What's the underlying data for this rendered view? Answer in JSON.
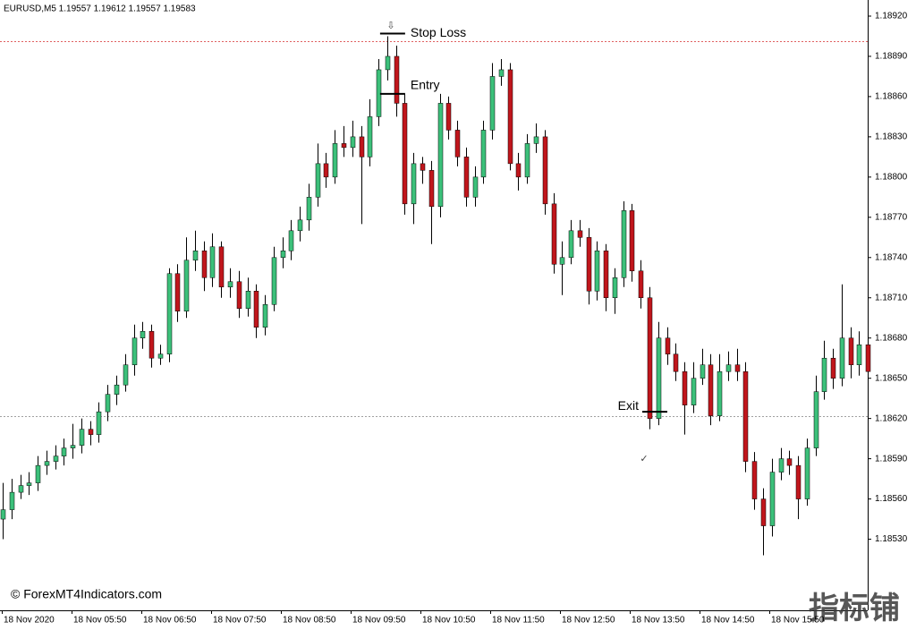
{
  "chart_data": {
    "type": "candlestick",
    "header": "EURUSD,M5  1.19557 1.19612 1.19557 1.19583",
    "copyright": "© ForexMT4Indicators.com",
    "watermark": "指标铺",
    "bull_color": "#3cc07a",
    "bear_color": "#c0161c",
    "ylim": [
      1.18477,
      1.18932
    ],
    "yticks": [
      {
        "value": 1.1892,
        "label": "1.18920"
      },
      {
        "value": 1.1889,
        "label": "1.18890"
      },
      {
        "value": 1.1886,
        "label": "1.18860"
      },
      {
        "value": 1.1883,
        "label": "1.18830"
      },
      {
        "value": 1.188,
        "label": "1.18800"
      },
      {
        "value": 1.1877,
        "label": "1.18770"
      },
      {
        "value": 1.1874,
        "label": "1.18740"
      },
      {
        "value": 1.1871,
        "label": "1.18710"
      },
      {
        "value": 1.1868,
        "label": "1.18680"
      },
      {
        "value": 1.1865,
        "label": "1.18650"
      },
      {
        "value": 1.1862,
        "label": "1.18620"
      },
      {
        "value": 1.1859,
        "label": "1.18590"
      },
      {
        "value": 1.1856,
        "label": "1.18560"
      },
      {
        "value": 1.1853,
        "label": "1.18530"
      }
    ],
    "xlabels": [
      "18 Nov 2020",
      "18 Nov 05:50",
      "18 Nov 06:50",
      "18 Nov 07:50",
      "18 Nov 08:50",
      "18 Nov 09:50",
      "18 Nov 10:50",
      "18 Nov 11:50",
      "18 Nov 12:50",
      "18 Nov 13:50",
      "18 Nov 14:50",
      "18 Nov 15:50"
    ],
    "levels": [
      {
        "value": 1.18901,
        "color": "#e06060"
      },
      {
        "value": 1.18622,
        "color": "#a0a0a0"
      }
    ],
    "markers": [
      {
        "label": "Stop Loss",
        "value": 1.18907,
        "index": 44,
        "side": "right"
      },
      {
        "label": "Entry",
        "value": 1.18862,
        "index": 44,
        "side": "right"
      },
      {
        "label": "Exit",
        "value": 1.18625,
        "index": 74,
        "side": "left"
      }
    ],
    "ohlc": [
      [
        1.18545,
        1.18572,
        1.1853,
        1.18552
      ],
      [
        1.18552,
        1.18575,
        1.18545,
        1.18565
      ],
      [
        1.18565,
        1.18578,
        1.1856,
        1.1857
      ],
      [
        1.1857,
        1.1858,
        1.18563,
        1.18572
      ],
      [
        1.18572,
        1.18592,
        1.18566,
        1.18585
      ],
      [
        1.18585,
        1.18596,
        1.18578,
        1.18588
      ],
      [
        1.18588,
        1.186,
        1.18582,
        1.18592
      ],
      [
        1.18592,
        1.18605,
        1.18585,
        1.18598
      ],
      [
        1.18598,
        1.18616,
        1.1859,
        1.186
      ],
      [
        1.186,
        1.1862,
        1.18594,
        1.18612
      ],
      [
        1.18612,
        1.18618,
        1.186,
        1.18608
      ],
      [
        1.18608,
        1.18632,
        1.18602,
        1.18625
      ],
      [
        1.18625,
        1.18645,
        1.18618,
        1.18638
      ],
      [
        1.18638,
        1.18652,
        1.1863,
        1.18645
      ],
      [
        1.18645,
        1.18668,
        1.1864,
        1.1866
      ],
      [
        1.1866,
        1.1869,
        1.18652,
        1.1868
      ],
      [
        1.1868,
        1.18692,
        1.18672,
        1.18685
      ],
      [
        1.18685,
        1.1869,
        1.18658,
        1.18665
      ],
      [
        1.18665,
        1.18675,
        1.1866,
        1.18668
      ],
      [
        1.18668,
        1.18732,
        1.18662,
        1.18728
      ],
      [
        1.18728,
        1.18735,
        1.18692,
        1.187
      ],
      [
        1.187,
        1.18755,
        1.18695,
        1.18738
      ],
      [
        1.18738,
        1.1876,
        1.1873,
        1.18745
      ],
      [
        1.18745,
        1.18752,
        1.18715,
        1.18725
      ],
      [
        1.18725,
        1.18758,
        1.18718,
        1.18748
      ],
      [
        1.18748,
        1.18752,
        1.1871,
        1.18718
      ],
      [
        1.18718,
        1.18732,
        1.1871,
        1.18722
      ],
      [
        1.18722,
        1.1873,
        1.18695,
        1.18702
      ],
      [
        1.18702,
        1.18725,
        1.18696,
        1.18715
      ],
      [
        1.18715,
        1.1872,
        1.1868,
        1.18688
      ],
      [
        1.18688,
        1.18712,
        1.18682,
        1.18705
      ],
      [
        1.18705,
        1.18748,
        1.187,
        1.1874
      ],
      [
        1.1874,
        1.18755,
        1.18732,
        1.18745
      ],
      [
        1.18745,
        1.18768,
        1.18738,
        1.1876
      ],
      [
        1.1876,
        1.18778,
        1.18752,
        1.18768
      ],
      [
        1.18768,
        1.18795,
        1.1876,
        1.18785
      ],
      [
        1.18785,
        1.18825,
        1.18778,
        1.1881
      ],
      [
        1.1881,
        1.18818,
        1.18792,
        1.188
      ],
      [
        1.188,
        1.18835,
        1.18795,
        1.18825
      ],
      [
        1.18825,
        1.18838,
        1.18815,
        1.18822
      ],
      [
        1.18822,
        1.18842,
        1.18815,
        1.1883
      ],
      [
        1.1883,
        1.18838,
        1.18765,
        1.18815
      ],
      [
        1.18815,
        1.18858,
        1.18808,
        1.18845
      ],
      [
        1.18845,
        1.18888,
        1.18838,
        1.1888
      ],
      [
        1.1888,
        1.18905,
        1.18872,
        1.1889
      ],
      [
        1.1889,
        1.18898,
        1.18845,
        1.18855
      ],
      [
        1.18855,
        1.18862,
        1.18772,
        1.1878
      ],
      [
        1.1878,
        1.18818,
        1.18765,
        1.1881
      ],
      [
        1.1881,
        1.18815,
        1.18795,
        1.18805
      ],
      [
        1.18805,
        1.18812,
        1.1875,
        1.18778
      ],
      [
        1.18778,
        1.18862,
        1.1877,
        1.18855
      ],
      [
        1.18855,
        1.1886,
        1.18828,
        1.18835
      ],
      [
        1.18835,
        1.18842,
        1.18808,
        1.18815
      ],
      [
        1.18815,
        1.18822,
        1.18778,
        1.18785
      ],
      [
        1.18785,
        1.18808,
        1.18778,
        1.188
      ],
      [
        1.188,
        1.18842,
        1.18795,
        1.18835
      ],
      [
        1.18835,
        1.18885,
        1.18828,
        1.18875
      ],
      [
        1.18875,
        1.18888,
        1.18868,
        1.1888
      ],
      [
        1.1888,
        1.18885,
        1.18805,
        1.1881
      ],
      [
        1.1881,
        1.18818,
        1.1879,
        1.188
      ],
      [
        1.188,
        1.18832,
        1.18795,
        1.18825
      ],
      [
        1.18825,
        1.1884,
        1.18818,
        1.1883
      ],
      [
        1.1883,
        1.18835,
        1.18772,
        1.1878
      ],
      [
        1.1878,
        1.18788,
        1.18728,
        1.18735
      ],
      [
        1.18735,
        1.18752,
        1.18712,
        1.1874
      ],
      [
        1.1874,
        1.18768,
        1.18735,
        1.1876
      ],
      [
        1.1876,
        1.18768,
        1.18748,
        1.18755
      ],
      [
        1.18755,
        1.18762,
        1.18705,
        1.18715
      ],
      [
        1.18715,
        1.18752,
        1.18708,
        1.18745
      ],
      [
        1.18745,
        1.1875,
        1.187,
        1.1871
      ],
      [
        1.1871,
        1.18732,
        1.18698,
        1.18725
      ],
      [
        1.18725,
        1.18782,
        1.18718,
        1.18775
      ],
      [
        1.18775,
        1.1878,
        1.18722,
        1.1873
      ],
      [
        1.1873,
        1.18738,
        1.18702,
        1.1871
      ],
      [
        1.1871,
        1.18718,
        1.18612,
        1.1862
      ],
      [
        1.1862,
        1.18692,
        1.18615,
        1.1868
      ],
      [
        1.1868,
        1.18688,
        1.1866,
        1.18668
      ],
      [
        1.18668,
        1.18676,
        1.18648,
        1.18655
      ],
      [
        1.18655,
        1.18662,
        1.18608,
        1.1863
      ],
      [
        1.1863,
        1.18662,
        1.18624,
        1.1865
      ],
      [
        1.1865,
        1.18672,
        1.18645,
        1.1866
      ],
      [
        1.1866,
        1.18668,
        1.18615,
        1.18622
      ],
      [
        1.18622,
        1.18668,
        1.18618,
        1.18655
      ],
      [
        1.18655,
        1.1867,
        1.18648,
        1.1866
      ],
      [
        1.1866,
        1.18672,
        1.18648,
        1.18655
      ],
      [
        1.18655,
        1.18662,
        1.1858,
        1.18588
      ],
      [
        1.18588,
        1.18595,
        1.18552,
        1.1856
      ],
      [
        1.1856,
        1.18568,
        1.18518,
        1.1854
      ],
      [
        1.1854,
        1.1859,
        1.18532,
        1.1858
      ],
      [
        1.1858,
        1.18598,
        1.18574,
        1.1859
      ],
      [
        1.1859,
        1.18596,
        1.18578,
        1.18585
      ],
      [
        1.18585,
        1.18592,
        1.18545,
        1.1856
      ],
      [
        1.1856,
        1.18605,
        1.18555,
        1.18598
      ],
      [
        1.18598,
        1.18652,
        1.18592,
        1.1864
      ],
      [
        1.1864,
        1.18678,
        1.18634,
        1.18665
      ],
      [
        1.18665,
        1.18672,
        1.18642,
        1.1865
      ],
      [
        1.1865,
        1.1872,
        1.18644,
        1.1868
      ],
      [
        1.1868,
        1.18688,
        1.1865,
        1.1866
      ],
      [
        1.1866,
        1.18685,
        1.18652,
        1.18675
      ],
      [
        1.18675,
        1.1869,
        1.18648,
        1.18655
      ]
    ]
  }
}
